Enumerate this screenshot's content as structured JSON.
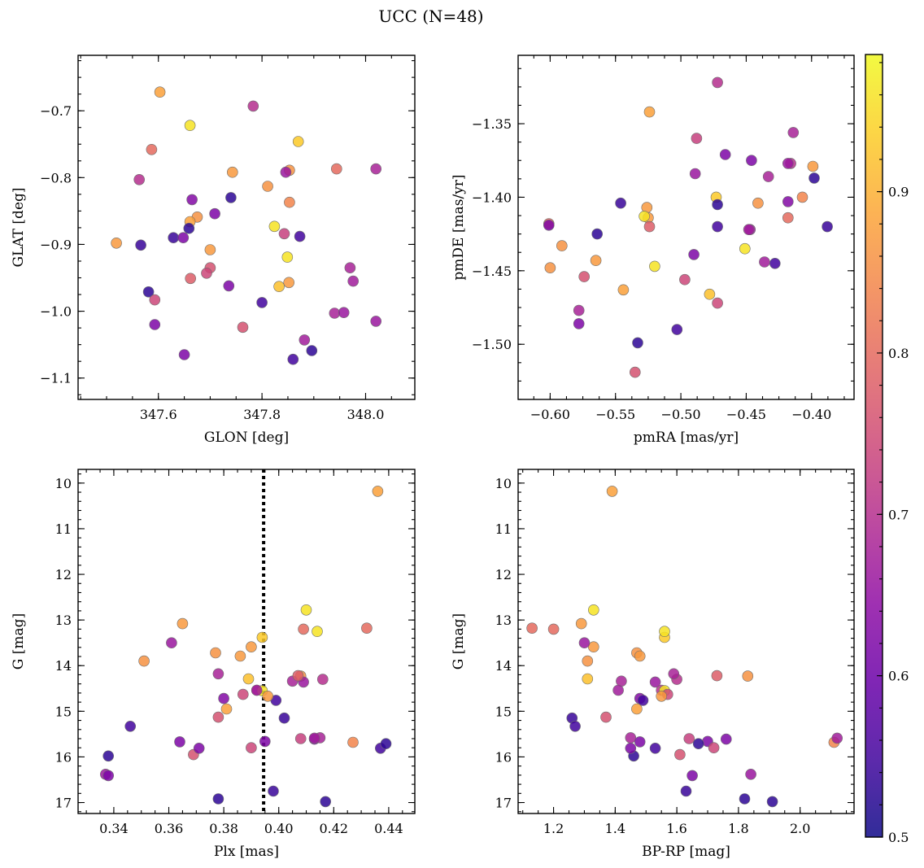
{
  "chart_data": {
    "title": "UCC (N=48)",
    "type": "scatter",
    "colorbar": {
      "colormap": "plasma",
      "range": [
        0.5,
        0.985
      ],
      "ticks": [
        0.5,
        0.6,
        0.7,
        0.8,
        0.9
      ]
    },
    "points": [
      {
        "glon": 347.603,
        "glat": -0.672,
        "pmra": -0.524,
        "pmde": -1.342,
        "plx": 0.436,
        "g": 10.18,
        "bprp": 1.39,
        "c": 0.88
      },
      {
        "glon": 347.661,
        "glat": -0.722,
        "pmra": -0.52,
        "pmde": -1.447,
        "plx": 0.41,
        "g": 12.78,
        "bprp": 1.33,
        "c": 0.96
      },
      {
        "glon": 347.783,
        "glat": -0.693,
        "pmra": -0.472,
        "pmde": -1.322,
        "plx": 0.392,
        "g": 14.54,
        "bprp": 1.55,
        "c": 0.7
      },
      {
        "glon": 347.87,
        "glat": -0.746,
        "pmra": -0.473,
        "pmde": -1.4,
        "plx": 0.394,
        "g": 13.38,
        "bprp": 1.56,
        "c": 0.93
      },
      {
        "glon": 347.587,
        "glat": -0.758,
        "pmra": -0.601,
        "pmde": -1.418,
        "plx": 0.432,
        "g": 13.18,
        "bprp": 1.13,
        "c": 0.8
      },
      {
        "glon": 347.563,
        "glat": -0.803,
        "pmra": -0.416,
        "pmde": -1.377,
        "plx": 0.416,
        "g": 14.3,
        "bprp": 1.6,
        "c": 0.7
      },
      {
        "glon": 347.743,
        "glat": -0.792,
        "pmra": -0.399,
        "pmde": -1.379,
        "plx": 0.365,
        "g": 13.08,
        "bprp": 1.29,
        "c": 0.87
      },
      {
        "glon": 347.811,
        "glat": -0.813,
        "pmra": -0.591,
        "pmde": -1.433,
        "plx": 0.408,
        "g": 14.23,
        "bprp": 1.83,
        "c": 0.86
      },
      {
        "glon": 347.853,
        "glat": -0.789,
        "pmra": -0.441,
        "pmde": -1.404,
        "plx": 0.351,
        "g": 13.9,
        "bprp": 1.31,
        "c": 0.86
      },
      {
        "glon": 347.846,
        "glat": -0.792,
        "pmra": -0.489,
        "pmde": -1.384,
        "plx": 0.409,
        "g": 14.36,
        "bprp": 1.53,
        "c": 0.66
      },
      {
        "glon": 347.944,
        "glat": -0.787,
        "pmra": -0.418,
        "pmde": -1.414,
        "plx": 0.409,
        "g": 13.2,
        "bprp": 1.2,
        "c": 0.8
      },
      {
        "glon": 348.02,
        "glat": -0.787,
        "pmra": -0.414,
        "pmde": -1.356,
        "plx": 0.405,
        "g": 14.34,
        "bprp": 1.42,
        "c": 0.68
      },
      {
        "glon": 347.665,
        "glat": -0.833,
        "pmra": -0.418,
        "pmde": -1.403,
        "plx": 0.38,
        "g": 14.72,
        "bprp": 1.48,
        "c": 0.63
      },
      {
        "glon": 347.74,
        "glat": -0.83,
        "pmra": -0.398,
        "pmde": -1.387,
        "plx": 0.338,
        "g": 15.98,
        "bprp": 1.46,
        "c": 0.53
      },
      {
        "glon": 347.709,
        "glat": -0.854,
        "pmra": -0.446,
        "pmde": -1.375,
        "plx": 0.413,
        "g": 15.61,
        "bprp": 1.76,
        "c": 0.62
      },
      {
        "glon": 347.853,
        "glat": -0.837,
        "pmra": -0.407,
        "pmde": -1.4,
        "plx": 0.427,
        "g": 15.68,
        "bprp": 2.11,
        "c": 0.84
      },
      {
        "glon": 347.675,
        "glat": -0.859,
        "pmra": -0.6,
        "pmde": -1.448,
        "plx": 0.377,
        "g": 13.72,
        "bprp": 1.47,
        "c": 0.86
      },
      {
        "glon": 347.661,
        "glat": -0.866,
        "pmra": -0.544,
        "pmde": -1.463,
        "plx": 0.381,
        "g": 14.95,
        "bprp": 1.47,
        "c": 0.88
      },
      {
        "glon": 347.824,
        "glat": -0.873,
        "pmra": -0.451,
        "pmde": -1.435,
        "plx": 0.414,
        "g": 13.25,
        "bprp": 1.56,
        "c": 0.96
      },
      {
        "glon": 347.659,
        "glat": -0.876,
        "pmra": -0.564,
        "pmde": -1.425,
        "plx": 0.417,
        "g": 16.98,
        "bprp": 1.91,
        "c": 0.53
      },
      {
        "glon": 347.629,
        "glat": -0.89,
        "pmra": -0.546,
        "pmde": -1.404,
        "plx": 0.398,
        "g": 16.75,
        "bprp": 1.63,
        "c": 0.54
      },
      {
        "glon": 347.648,
        "glat": -0.89,
        "pmra": -0.466,
        "pmde": -1.371,
        "plx": 0.395,
        "g": 15.66,
        "bprp": 1.7,
        "c": 0.62
      },
      {
        "glon": 347.843,
        "glat": -0.884,
        "pmra": -0.488,
        "pmde": -1.36,
        "plx": 0.408,
        "g": 15.6,
        "bprp": 1.64,
        "c": 0.73
      },
      {
        "glon": 347.873,
        "glat": -0.888,
        "pmra": -0.428,
        "pmde": -1.445,
        "plx": 0.399,
        "g": 14.76,
        "bprp": 1.49,
        "c": 0.55
      },
      {
        "glon": 347.519,
        "glat": -0.898,
        "pmra": -0.526,
        "pmde": -1.407,
        "plx": 0.39,
        "g": 13.59,
        "bprp": 1.33,
        "c": 0.87
      },
      {
        "glon": 347.566,
        "glat": -0.901,
        "pmra": -0.388,
        "pmde": -1.42,
        "plx": 0.402,
        "g": 15.15,
        "bprp": 1.26,
        "c": 0.54
      },
      {
        "glon": 347.7,
        "glat": -0.908,
        "pmra": -0.525,
        "pmde": -1.414,
        "plx": 0.386,
        "g": 13.79,
        "bprp": 1.48,
        "c": 0.87
      },
      {
        "glon": 347.849,
        "glat": -0.919,
        "pmra": -0.528,
        "pmde": -1.413,
        "plx": 0.394,
        "g": 14.55,
        "bprp": 1.56,
        "c": 0.96
      },
      {
        "glon": 347.97,
        "glat": -0.935,
        "pmra": -0.433,
        "pmde": -1.386,
        "plx": 0.415,
        "g": 15.58,
        "bprp": 1.45,
        "c": 0.68
      },
      {
        "glon": 347.7,
        "glat": -0.935,
        "pmra": -0.574,
        "pmde": -1.454,
        "plx": 0.369,
        "g": 15.95,
        "bprp": 1.61,
        "c": 0.76
      },
      {
        "glon": 347.693,
        "glat": -0.943,
        "pmra": -0.497,
        "pmde": -1.456,
        "plx": 0.387,
        "g": 14.63,
        "bprp": 1.57,
        "c": 0.74
      },
      {
        "glon": 347.662,
        "glat": -0.951,
        "pmra": -0.524,
        "pmde": -1.42,
        "plx": 0.407,
        "g": 14.22,
        "bprp": 1.73,
        "c": 0.78
      },
      {
        "glon": 347.852,
        "glat": -0.957,
        "pmra": -0.565,
        "pmde": -1.443,
        "plx": 0.396,
        "g": 14.67,
        "bprp": 1.55,
        "c": 0.87
      },
      {
        "glon": 347.833,
        "glat": -0.963,
        "pmra": -0.478,
        "pmde": -1.466,
        "plx": 0.389,
        "g": 14.29,
        "bprp": 1.31,
        "c": 0.92
      },
      {
        "glon": 347.976,
        "glat": -0.955,
        "pmra": -0.436,
        "pmde": -1.444,
        "plx": 0.392,
        "g": 14.54,
        "bprp": 1.41,
        "c": 0.67
      },
      {
        "glon": 347.736,
        "glat": -0.962,
        "pmra": -0.49,
        "pmde": -1.439,
        "plx": 0.364,
        "g": 15.67,
        "bprp": 1.48,
        "c": 0.62
      },
      {
        "glon": 347.581,
        "glat": -0.971,
        "pmra": -0.533,
        "pmde": -1.499,
        "plx": 0.378,
        "g": 16.92,
        "bprp": 1.82,
        "c": 0.53
      },
      {
        "glon": 347.593,
        "glat": -0.983,
        "pmra": -0.472,
        "pmde": -1.472,
        "plx": 0.39,
        "g": 15.8,
        "bprp": 1.72,
        "c": 0.74
      },
      {
        "glon": 347.8,
        "glat": -0.987,
        "pmra": -0.503,
        "pmde": -1.49,
        "plx": 0.346,
        "g": 15.33,
        "bprp": 1.27,
        "c": 0.55
      },
      {
        "glon": 347.593,
        "glat": -1.02,
        "pmra": -0.601,
        "pmde": -1.419,
        "plx": 0.371,
        "g": 15.81,
        "bprp": 1.45,
        "c": 0.62
      },
      {
        "glon": 347.763,
        "glat": -1.024,
        "pmra": -0.535,
        "pmde": -1.519,
        "plx": 0.378,
        "g": 15.13,
        "bprp": 1.37,
        "c": 0.76
      },
      {
        "glon": 347.94,
        "glat": -1.003,
        "pmra": -0.578,
        "pmde": -1.477,
        "plx": 0.378,
        "g": 14.18,
        "bprp": 1.59,
        "c": 0.68
      },
      {
        "glon": 347.958,
        "glat": -1.002,
        "pmra": -0.447,
        "pmde": -1.422,
        "plx": 0.361,
        "g": 13.5,
        "bprp": 1.3,
        "c": 0.66
      },
      {
        "glon": 348.02,
        "glat": -1.015,
        "pmra": -0.418,
        "pmde": -1.377,
        "plx": 0.337,
        "g": 16.38,
        "bprp": 1.84,
        "c": 0.66
      },
      {
        "glon": 347.882,
        "glat": -1.043,
        "pmra": -0.448,
        "pmde": -1.422,
        "plx": 0.413,
        "g": 15.59,
        "bprp": 2.12,
        "c": 0.67
      },
      {
        "glon": 347.65,
        "glat": -1.065,
        "pmra": -0.578,
        "pmde": -1.486,
        "plx": 0.338,
        "g": 16.41,
        "bprp": 1.65,
        "c": 0.62
      },
      {
        "glon": 347.86,
        "glat": -1.072,
        "pmra": -0.472,
        "pmde": -1.42,
        "plx": 0.437,
        "g": 15.81,
        "bprp": 1.53,
        "c": 0.55
      },
      {
        "glon": 347.896,
        "glat": -1.059,
        "pmra": -0.472,
        "pmde": -1.405,
        "plx": 0.439,
        "g": 15.71,
        "bprp": 1.67,
        "c": 0.53
      }
    ],
    "panels": [
      {
        "id": "glon-glat",
        "x_field": "glon",
        "y_field": "glat",
        "xlabel": "GLON [deg]",
        "ylabel": "GLAT [deg]",
        "xlim": [
          347.445,
          348.095
        ],
        "ylim": [
          -1.132,
          -0.617
        ],
        "xticks": [
          347.6,
          347.8,
          348.0
        ],
        "xtick_labels": [
          "347.6",
          "347.8",
          "348.0"
        ],
        "yticks": [
          -0.7,
          -0.8,
          -0.9,
          -1.0,
          -1.1
        ],
        "ytick_labels": [
          "−0.7",
          "−0.8",
          "−0.9",
          "−1.0",
          "−1.1"
        ]
      },
      {
        "id": "pmra-pmde",
        "x_field": "pmra",
        "y_field": "pmde",
        "xlabel": "pmRA [mas/yr]",
        "ylabel": "pmDE [mas/yr]",
        "xlim": [
          -0.6245,
          -0.3675
        ],
        "ylim": [
          -1.5375,
          -1.3035
        ],
        "xticks": [
          -0.6,
          -0.55,
          -0.5,
          -0.45,
          -0.4
        ],
        "xtick_labels": [
          "−0.60",
          "−0.55",
          "−0.50",
          "−0.45",
          "−0.40"
        ],
        "yticks": [
          -1.35,
          -1.4,
          -1.45,
          -1.5
        ],
        "ytick_labels": [
          "−1.35",
          "−1.40",
          "−1.45",
          "−1.50"
        ]
      },
      {
        "id": "plx-g",
        "x_field": "plx",
        "y_field": "g",
        "xlabel": "Plx [mas]",
        "ylabel": "G [mag]",
        "xlim": [
          0.327,
          0.4495
        ],
        "ylim": [
          17.24,
          9.7
        ],
        "y_inverted": true,
        "xticks": [
          0.34,
          0.36,
          0.38,
          0.4,
          0.42,
          0.44
        ],
        "xtick_labels": [
          "0.34",
          "0.36",
          "0.38",
          "0.40",
          "0.42",
          "0.44"
        ],
        "yticks": [
          10,
          11,
          12,
          13,
          14,
          15,
          16,
          17
        ],
        "ytick_labels": [
          "10",
          "11",
          "12",
          "13",
          "14",
          "15",
          "16",
          "17"
        ],
        "vline": 0.3945
      },
      {
        "id": "bprp-g",
        "x_field": "bprp",
        "y_field": "g",
        "xlabel": "BP-RP [mag]",
        "ylabel": "G [mag]",
        "xlim": [
          1.085,
          2.175
        ],
        "ylim": [
          17.24,
          9.7
        ],
        "y_inverted": true,
        "xticks": [
          1.2,
          1.4,
          1.6,
          1.8,
          2.0
        ],
        "xtick_labels": [
          "1.2",
          "1.4",
          "1.6",
          "1.8",
          "2.0"
        ],
        "yticks": [
          10,
          11,
          12,
          13,
          14,
          15,
          16,
          17
        ],
        "ytick_labels": [
          "10",
          "11",
          "12",
          "13",
          "14",
          "15",
          "16",
          "17"
        ]
      }
    ]
  }
}
